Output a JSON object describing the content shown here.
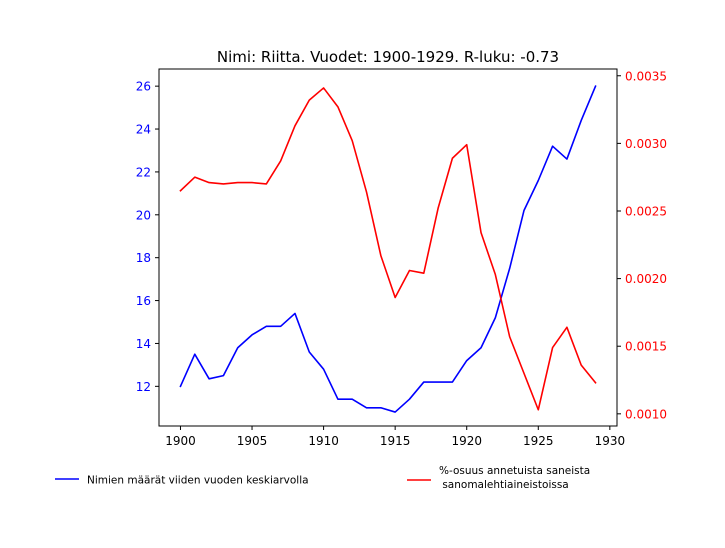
{
  "chart_data": {
    "type": "line",
    "title": "Nimi: Riitta. Vuodet: 1900-1929. R-luku: -0.73",
    "x": [
      1900,
      1901,
      1902,
      1903,
      1904,
      1905,
      1906,
      1907,
      1908,
      1909,
      1910,
      1911,
      1912,
      1913,
      1914,
      1915,
      1916,
      1917,
      1918,
      1919,
      1920,
      1921,
      1922,
      1923,
      1924,
      1925,
      1926,
      1927,
      1928,
      1929
    ],
    "xlim": [
      1898.5,
      1930.5
    ],
    "x_ticks": [
      1900,
      1905,
      1910,
      1915,
      1920,
      1925,
      1930
    ],
    "y_left": {
      "lim": [
        10.15,
        26.8
      ],
      "ticks": [
        12,
        14,
        16,
        18,
        20,
        22,
        24,
        26
      ],
      "color": "#0000ff"
    },
    "y_right": {
      "lim": [
        0.00091,
        0.00355
      ],
      "ticks": [
        "0.0010",
        "0.0015",
        "0.0020",
        "0.0025",
        "0.0030",
        "0.0035"
      ],
      "tick_values": [
        0.001,
        0.0015,
        0.002,
        0.0025,
        0.003,
        0.0035
      ],
      "color": "#ff0000"
    },
    "series": [
      {
        "name": "Nimien määrät viiden vuoden keskiarvolla",
        "axis": "left",
        "color": "#0000ff",
        "values": [
          12.0,
          13.5,
          12.35,
          12.5,
          13.8,
          14.4,
          14.8,
          14.8,
          15.4,
          13.6,
          12.8,
          11.4,
          11.4,
          11.0,
          11.0,
          10.8,
          11.4,
          12.2,
          12.2,
          12.2,
          13.2,
          13.8,
          15.2,
          17.5,
          20.2,
          21.6,
          23.2,
          22.6,
          24.4,
          26.0
        ]
      },
      {
        "name": "%-osuus annetuista saneista\n sanomalehtiaineistoissa",
        "axis": "right",
        "color": "#ff0000",
        "values": [
          0.00265,
          0.00275,
          0.00271,
          0.0027,
          0.00271,
          0.00271,
          0.0027,
          0.00287,
          0.00313,
          0.00332,
          0.00341,
          0.00327,
          0.00302,
          0.00264,
          0.00217,
          0.00186,
          0.00206,
          0.00204,
          0.00252,
          0.00289,
          0.00299,
          0.00234,
          0.00203,
          0.00157,
          0.0013,
          0.00103,
          0.00149,
          0.00164,
          0.00136,
          0.00123
        ]
      }
    ],
    "legend_placement": "bottom",
    "grid": false
  }
}
